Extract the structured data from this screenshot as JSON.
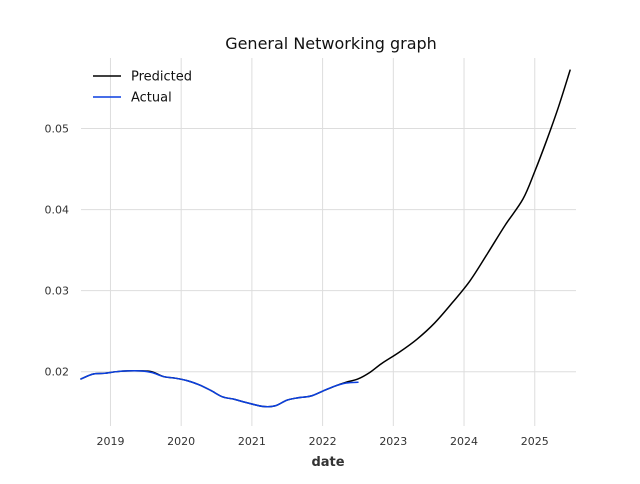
{
  "chart_data": {
    "type": "line",
    "title": "General Networking graph",
    "xlabel": "date",
    "ylabel": "",
    "x_axis_kind": "date",
    "xlim": [
      "2018-08-01",
      "2025-08-01"
    ],
    "ylim": [
      0.0133,
      0.0587
    ],
    "x_ticks": [
      "2019",
      "2020",
      "2021",
      "2022",
      "2023",
      "2024",
      "2025"
    ],
    "y_ticks": [
      0.02,
      0.03,
      0.04,
      0.05
    ],
    "y_tick_labels": [
      "0.02",
      "0.03",
      "0.04",
      "0.05"
    ],
    "grid": true,
    "legend": "top-left",
    "series": [
      {
        "name": "Predicted",
        "color": "#000000",
        "points": [
          [
            "2018-08-01",
            0.0191
          ],
          [
            "2018-10-01",
            0.0197
          ],
          [
            "2018-12-01",
            0.0198
          ],
          [
            "2019-02-01",
            0.02
          ],
          [
            "2019-04-01",
            0.0201
          ],
          [
            "2019-06-01",
            0.0201
          ],
          [
            "2019-08-01",
            0.02
          ],
          [
            "2019-10-01",
            0.0194
          ],
          [
            "2019-12-01",
            0.0192
          ],
          [
            "2020-02-01",
            0.0189
          ],
          [
            "2020-04-01",
            0.0184
          ],
          [
            "2020-06-01",
            0.0177
          ],
          [
            "2020-08-01",
            0.0169
          ],
          [
            "2020-10-01",
            0.0166
          ],
          [
            "2020-12-01",
            0.0162
          ],
          [
            "2021-03-01",
            0.0157
          ],
          [
            "2021-05-01",
            0.0158
          ],
          [
            "2021-07-01",
            0.0165
          ],
          [
            "2021-09-01",
            0.0168
          ],
          [
            "2021-11-01",
            0.017
          ],
          [
            "2022-01-01",
            0.0176
          ],
          [
            "2022-03-01",
            0.0182
          ],
          [
            "2022-05-01",
            0.0187
          ],
          [
            "2022-07-01",
            0.0191
          ],
          [
            "2022-09-01",
            0.0199
          ],
          [
            "2022-11-01",
            0.021
          ],
          [
            "2023-02-01",
            0.0224
          ],
          [
            "2023-05-01",
            0.024
          ],
          [
            "2023-08-01",
            0.026
          ],
          [
            "2023-11-01",
            0.0285
          ],
          [
            "2024-02-01",
            0.0312
          ],
          [
            "2024-05-01",
            0.0346
          ],
          [
            "2024-08-01",
            0.0381
          ],
          [
            "2024-11-01",
            0.0413
          ],
          [
            "2025-01-01",
            0.0447
          ],
          [
            "2025-03-01",
            0.0485
          ],
          [
            "2025-05-01",
            0.0526
          ],
          [
            "2025-07-01",
            0.0572
          ]
        ]
      },
      {
        "name": "Actual",
        "color": "#0a3fe0",
        "points": [
          [
            "2018-08-01",
            0.0191
          ],
          [
            "2018-10-01",
            0.0197
          ],
          [
            "2018-12-01",
            0.0198
          ],
          [
            "2019-02-01",
            0.02
          ],
          [
            "2019-04-01",
            0.0201
          ],
          [
            "2019-06-01",
            0.0201
          ],
          [
            "2019-08-01",
            0.0199
          ],
          [
            "2019-10-01",
            0.0194
          ],
          [
            "2019-12-01",
            0.0192
          ],
          [
            "2020-02-01",
            0.0189
          ],
          [
            "2020-04-01",
            0.0184
          ],
          [
            "2020-06-01",
            0.0177
          ],
          [
            "2020-08-01",
            0.0169
          ],
          [
            "2020-10-01",
            0.0166
          ],
          [
            "2020-12-01",
            0.0162
          ],
          [
            "2021-03-01",
            0.0157
          ],
          [
            "2021-05-01",
            0.0158
          ],
          [
            "2021-07-01",
            0.0165
          ],
          [
            "2021-09-01",
            0.0168
          ],
          [
            "2021-11-01",
            0.017
          ],
          [
            "2022-01-01",
            0.0176
          ],
          [
            "2022-03-01",
            0.0182
          ],
          [
            "2022-05-01",
            0.0186
          ],
          [
            "2022-07-01",
            0.0187
          ]
        ]
      }
    ]
  }
}
